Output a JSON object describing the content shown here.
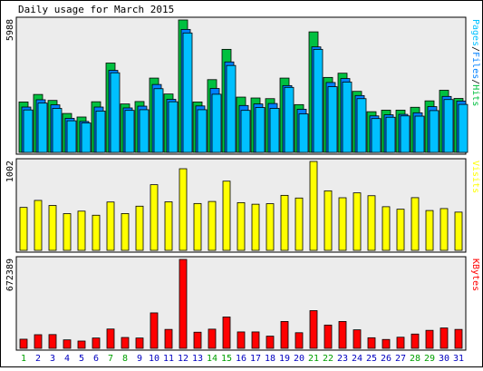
{
  "title": "Daily usage for March 2015",
  "colors": {
    "hits": "#00c040",
    "files": "#0080ff",
    "pages": "#00c0ff",
    "visits": "#ffff00",
    "kbytes": "#ff0000",
    "weekend_label": "#00a000",
    "weekday_label": "#0000c0",
    "panel_bg": "#ececec",
    "page_bg": "#ffffff"
  },
  "chart_data": [
    {
      "type": "bar",
      "panel": "hits",
      "ymax_label": "5988",
      "legend": [
        {
          "text": "Pages",
          "color": "#00c0ff"
        },
        {
          "text": "Files",
          "color": "#0080ff"
        },
        {
          "text": "Hits",
          "color": "#00c040"
        }
      ],
      "categories": [
        "1",
        "2",
        "3",
        "4",
        "5",
        "6",
        "7",
        "8",
        "9",
        "10",
        "11",
        "12",
        "13",
        "14",
        "15",
        "16",
        "17",
        "18",
        "19",
        "20",
        "21",
        "22",
        "23",
        "24",
        "25",
        "26",
        "27",
        "28",
        "29",
        "30",
        "31"
      ],
      "series": [
        {
          "name": "Hits",
          "values": [
            2280,
            2620,
            2350,
            1760,
            1600,
            2290,
            4040,
            2190,
            2300,
            3360,
            2640,
            5988,
            2280,
            3290,
            4660,
            2500,
            2460,
            2430,
            3360,
            2160,
            5450,
            3390,
            3580,
            2760,
            1840,
            1910,
            1910,
            2040,
            2330,
            2810,
            2440
          ]
        },
        {
          "name": "Files",
          "values": [
            2050,
            2380,
            2150,
            1540,
            1400,
            2050,
            3710,
            2010,
            2090,
            3070,
            2400,
            5560,
            2100,
            2890,
            4090,
            2120,
            2190,
            2210,
            3020,
            1950,
            4770,
            3160,
            3340,
            2570,
            1650,
            1700,
            1720,
            1790,
            2070,
            2530,
            2320
          ]
        },
        {
          "name": "Pages",
          "values": [
            1920,
            2230,
            1990,
            1430,
            1330,
            1870,
            3600,
            1900,
            1930,
            2880,
            2290,
            5400,
            1930,
            2630,
            3930,
            1900,
            2030,
            1990,
            2940,
            1740,
            4660,
            2970,
            3180,
            2430,
            1530,
            1590,
            1650,
            1640,
            1890,
            2390,
            2170
          ]
        }
      ]
    },
    {
      "type": "bar",
      "panel": "visits",
      "ymax_label": "1002",
      "legend": [
        {
          "text": "Visits",
          "color": "#ffff00"
        }
      ],
      "categories": [
        "1",
        "2",
        "3",
        "4",
        "5",
        "6",
        "7",
        "8",
        "9",
        "10",
        "11",
        "12",
        "13",
        "14",
        "15",
        "16",
        "17",
        "18",
        "19",
        "20",
        "21",
        "22",
        "23",
        "24",
        "25",
        "26",
        "27",
        "28",
        "29",
        "30",
        "31"
      ],
      "series": [
        {
          "name": "Visits",
          "values": [
            484,
            563,
            506,
            414,
            442,
            396,
            545,
            415,
            498,
            740,
            547,
            920,
            528,
            551,
            780,
            538,
            520,
            526,
            620,
            590,
            1002,
            671,
            593,
            648,
            616,
            492,
            464,
            594,
            449,
            471,
            431
          ]
        }
      ]
    },
    {
      "type": "bar",
      "panel": "kbytes",
      "ymax_label": "672389",
      "legend": [
        {
          "text": "KBytes",
          "color": "#ff0000"
        }
      ],
      "categories": [
        "1",
        "2",
        "3",
        "4",
        "5",
        "6",
        "7",
        "8",
        "9",
        "10",
        "11",
        "12",
        "13",
        "14",
        "15",
        "16",
        "17",
        "18",
        "19",
        "20",
        "21",
        "22",
        "23",
        "24",
        "25",
        "26",
        "27",
        "28",
        "29",
        "30",
        "31"
      ],
      "series": [
        {
          "name": "KBytes",
          "values": [
            69000,
            103000,
            104000,
            64000,
            55000,
            78000,
            146000,
            82000,
            78000,
            268000,
            143000,
            672389,
            122000,
            145000,
            237000,
            124000,
            124000,
            92000,
            203000,
            118000,
            285000,
            176000,
            203000,
            140000,
            80000,
            67000,
            84000,
            108000,
            136000,
            154000,
            143000
          ]
        }
      ]
    }
  ],
  "weekend_days": [
    "1",
    "7",
    "8",
    "14",
    "15",
    "21",
    "22",
    "28",
    "29"
  ]
}
